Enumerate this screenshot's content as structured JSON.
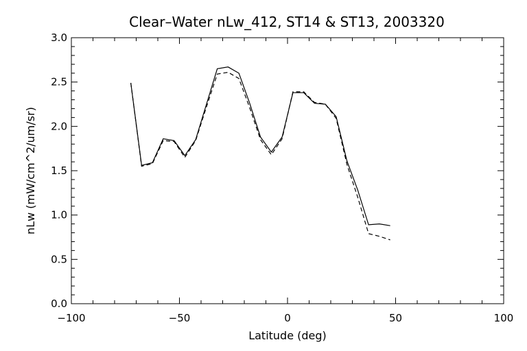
{
  "chart_data": {
    "type": "line",
    "title": "Clear–Water nLw_412, ST14 & ST13, 2003320",
    "xlabel": "Latitude (deg)",
    "ylabel": "nLw (mW/cm^2/um/sr)",
    "xlim": [
      -100,
      100
    ],
    "ylim": [
      0.0,
      3.0
    ],
    "x_ticks": [
      -100,
      -50,
      0,
      50,
      100
    ],
    "x_tick_labels": [
      "−100",
      "−50",
      "0",
      "50",
      "100"
    ],
    "y_ticks": [
      0.0,
      0.5,
      1.0,
      1.5,
      2.0,
      2.5,
      3.0
    ],
    "y_tick_labels": [
      "0.0",
      "0.5",
      "1.0",
      "1.5",
      "2.0",
      "2.5",
      "3.0"
    ],
    "grid": false,
    "series": [
      {
        "style": "solid",
        "color": "#000000",
        "points": [
          [
            -72.5,
            2.49
          ],
          [
            -67.5,
            1.56
          ],
          [
            -62.5,
            1.59
          ],
          [
            -57.5,
            1.86
          ],
          [
            -52.5,
            1.84
          ],
          [
            -47.5,
            1.67
          ],
          [
            -42.5,
            1.85
          ],
          [
            -37.5,
            2.25
          ],
          [
            -32.5,
            2.65
          ],
          [
            -27.5,
            2.67
          ],
          [
            -22.5,
            2.6
          ],
          [
            -17.5,
            2.26
          ],
          [
            -12.5,
            1.88
          ],
          [
            -7.5,
            1.71
          ],
          [
            -2.5,
            1.88
          ],
          [
            2.5,
            2.38
          ],
          [
            7.5,
            2.38
          ],
          [
            12.5,
            2.26
          ],
          [
            17.5,
            2.25
          ],
          [
            22.5,
            2.11
          ],
          [
            27.5,
            1.61
          ],
          [
            32.5,
            1.28
          ],
          [
            37.5,
            0.89
          ],
          [
            42.5,
            0.9
          ],
          [
            47.5,
            0.88
          ]
        ]
      },
      {
        "style": "dashed",
        "color": "#000000",
        "points": [
          [
            -72.5,
            2.49
          ],
          [
            -67.5,
            1.55
          ],
          [
            -62.5,
            1.58
          ],
          [
            -57.5,
            1.84
          ],
          [
            -52.5,
            1.83
          ],
          [
            -47.5,
            1.65
          ],
          [
            -42.5,
            1.84
          ],
          [
            -37.5,
            2.22
          ],
          [
            -32.5,
            2.59
          ],
          [
            -27.5,
            2.61
          ],
          [
            -22.5,
            2.54
          ],
          [
            -17.5,
            2.21
          ],
          [
            -12.5,
            1.85
          ],
          [
            -7.5,
            1.68
          ],
          [
            -2.5,
            1.86
          ],
          [
            2.5,
            2.39
          ],
          [
            7.5,
            2.39
          ],
          [
            12.5,
            2.27
          ],
          [
            17.5,
            2.25
          ],
          [
            22.5,
            2.09
          ],
          [
            27.5,
            1.57
          ],
          [
            32.5,
            1.2
          ],
          [
            37.5,
            0.79
          ],
          [
            42.5,
            0.76
          ],
          [
            47.5,
            0.72
          ]
        ]
      }
    ]
  }
}
